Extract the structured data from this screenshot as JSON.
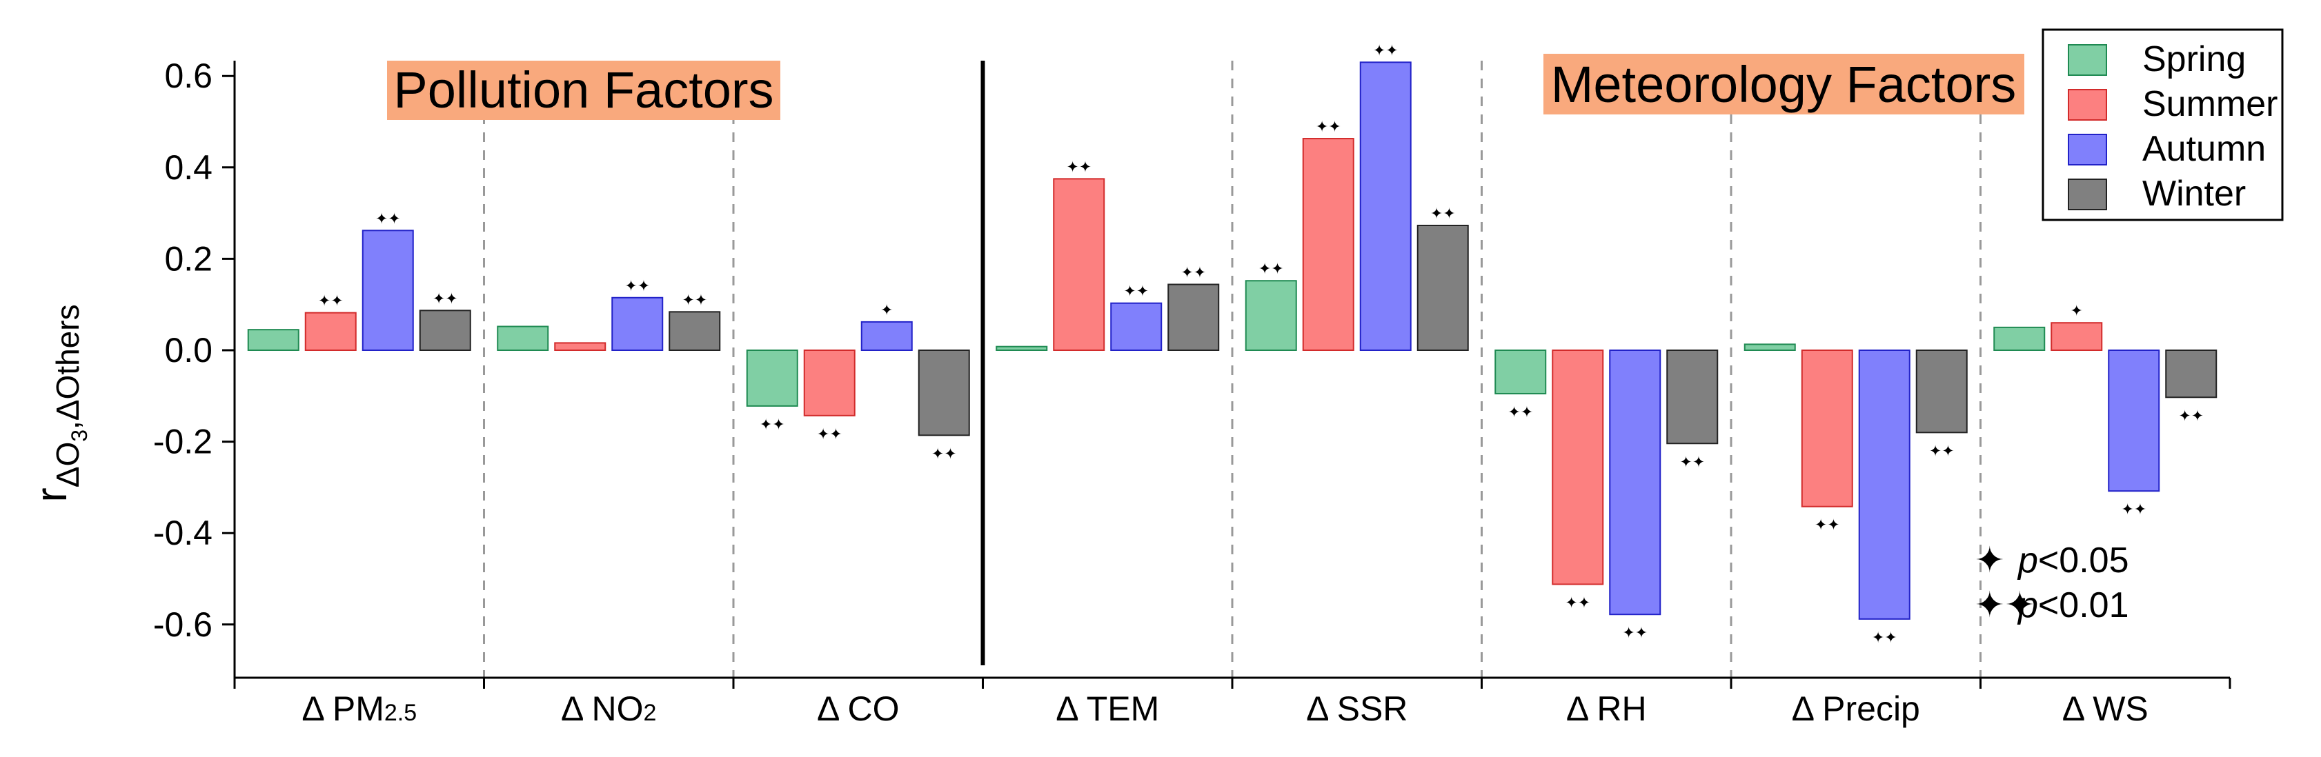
{
  "chart_data": {
    "type": "bar",
    "title": "",
    "ylabel": "rΔO3,ΔOthers",
    "ylabel_main": "r",
    "ylabel_sub_part1": "ΔO",
    "ylabel_sub_digit": "3",
    "ylabel_sub_part2": ",ΔOthers",
    "ylim": [
      -0.7,
      0.65
    ],
    "yticks": [
      -0.6,
      -0.4,
      -0.2,
      0.0,
      0.2,
      0.4,
      0.6
    ],
    "ytick_labels": [
      "-0.6",
      "-0.4",
      "-0.2",
      "0.0",
      "0.2",
      "0.4",
      "0.6"
    ],
    "categories": [
      "Δ PM2.5",
      "Δ NO2",
      "Δ CO",
      "Δ TEM",
      "Δ SSR",
      "Δ RH",
      "Δ Precip",
      "Δ WS"
    ],
    "category_labels": [
      {
        "main": "Δ PM",
        "sub": "2.5"
      },
      {
        "main": "Δ NO",
        "sub": "2"
      },
      {
        "main": "Δ CO",
        "sub": ""
      },
      {
        "main": "Δ TEM",
        "sub": ""
      },
      {
        "main": "Δ SSR",
        "sub": ""
      },
      {
        "main": "Δ RH",
        "sub": ""
      },
      {
        "main": "Δ Precip",
        "sub": ""
      },
      {
        "main": "Δ WS",
        "sub": ""
      }
    ],
    "series": [
      {
        "name": "Spring",
        "color": "#80cfa4",
        "stroke": "#1f8a52",
        "values": [
          0.045,
          0.052,
          -0.122,
          0.008,
          0.152,
          -0.095,
          0.013,
          0.05
        ],
        "sig": [
          0,
          0,
          2,
          0,
          2,
          2,
          0,
          0
        ]
      },
      {
        "name": "Summer",
        "color": "#fc8080",
        "stroke": "#d22b2b",
        "values": [
          0.082,
          0.016,
          -0.143,
          0.375,
          0.463,
          -0.512,
          -0.342,
          0.06
        ],
        "sig": [
          2,
          0,
          2,
          2,
          2,
          2,
          2,
          1
        ]
      },
      {
        "name": "Autumn",
        "color": "#8080fc",
        "stroke": "#2222c8",
        "values": [
          0.262,
          0.115,
          0.062,
          0.103,
          0.63,
          -0.578,
          -0.588,
          -0.308
        ],
        "sig": [
          2,
          2,
          1,
          2,
          2,
          2,
          2,
          2
        ]
      },
      {
        "name": "Winter",
        "color": "#808080",
        "stroke": "#222222",
        "values": [
          0.087,
          0.084,
          -0.186,
          0.144,
          0.273,
          -0.204,
          -0.18,
          -0.103
        ],
        "sig": [
          2,
          2,
          2,
          2,
          2,
          2,
          2,
          2
        ]
      }
    ],
    "panel_labels": {
      "pollution": "Pollution Factors",
      "meteorology": "Meteorology Factors"
    },
    "panel_label_bg": "#f9a97d",
    "legend": [
      "Spring",
      "Summer",
      "Autumn",
      "Winter"
    ],
    "legend_position": "top-right",
    "significance": {
      "single_symbol": "✦",
      "double_symbol": "✦✦",
      "p005_label_italic": "p",
      "p005_label_rest": "<0.05",
      "p001_label_italic": "p",
      "p001_label_rest": "<0.01"
    }
  }
}
